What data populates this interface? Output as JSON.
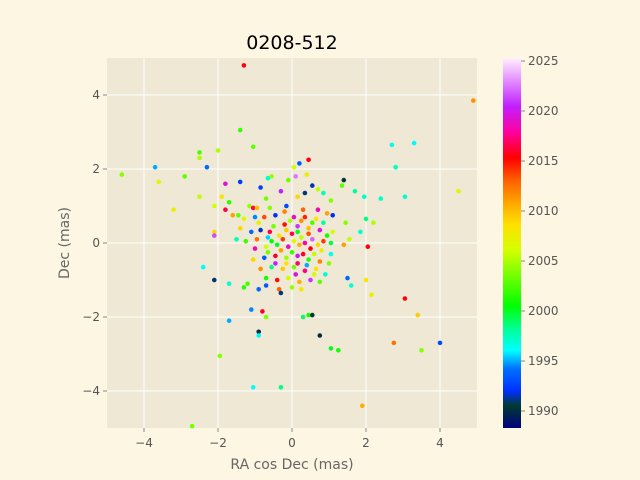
{
  "chart_data": {
    "type": "scatter",
    "title": "0208-512",
    "xlabel": "RA cos Dec (mas)",
    "ylabel": "Dec (mas)",
    "xlim": [
      -5.0,
      5.0
    ],
    "ylim": [
      -5.0,
      5.0
    ],
    "xticks": [
      -4,
      -2,
      0,
      2,
      4
    ],
    "yticks": [
      -4,
      -2,
      0,
      2,
      4
    ],
    "x_tick_labels": [
      "−4",
      "−2",
      "0",
      "2",
      "4"
    ],
    "y_tick_labels": [
      "−4",
      "−2",
      "0",
      "2",
      "4"
    ],
    "grid": true,
    "colorbar": {
      "label": "",
      "range": [
        1988.3,
        2025.3
      ],
      "ticks": [
        1990,
        1995,
        2000,
        2005,
        2010,
        2015,
        2020,
        2025
      ],
      "tick_labels": [
        "1990",
        "1995",
        "2000",
        "2005",
        "2010",
        "2015",
        "2020",
        "2025"
      ],
      "colormap": "gist_ncar"
    },
    "colors": {
      "page_background": "#fdf6e3",
      "axes_background": "#eee8d5",
      "grid": "#ffffff"
    },
    "points": [
      {
        "x": -1.3,
        "y": 4.8,
        "t": 2015.5
      },
      {
        "x": 4.9,
        "y": 3.85,
        "t": 2011.5
      },
      {
        "x": -4.6,
        "y": 1.85,
        "t": 2004.0
      },
      {
        "x": -3.7,
        "y": 2.05,
        "t": 1995.0
      },
      {
        "x": -3.6,
        "y": 1.65,
        "t": 2007.0
      },
      {
        "x": -3.2,
        "y": 0.9,
        "t": 2007.5
      },
      {
        "x": -2.9,
        "y": 1.8,
        "t": 2003.0
      },
      {
        "x": -2.5,
        "y": 2.45,
        "t": 2002.5
      },
      {
        "x": -2.5,
        "y": 2.3,
        "t": 2005.0
      },
      {
        "x": -2.3,
        "y": 2.05,
        "t": 1994.0
      },
      {
        "x": -2.0,
        "y": 2.5,
        "t": 2005.0
      },
      {
        "x": -1.4,
        "y": 3.05,
        "t": 2002.0
      },
      {
        "x": -1.05,
        "y": 2.6,
        "t": 2003.0
      },
      {
        "x": -1.4,
        "y": 1.65,
        "t": 1992.5
      },
      {
        "x": -1.8,
        "y": 1.6,
        "t": 2019.5
      },
      {
        "x": -2.5,
        "y": 1.25,
        "t": 2005.5
      },
      {
        "x": -1.9,
        "y": 1.25,
        "t": 2008.0
      },
      {
        "x": -1.7,
        "y": 1.1,
        "t": 2001.5
      },
      {
        "x": -2.1,
        "y": 1.0,
        "t": 2006.0
      },
      {
        "x": -1.8,
        "y": 0.9,
        "t": 2016.5
      },
      {
        "x": -1.6,
        "y": 0.75,
        "t": 2011.0
      },
      {
        "x": -2.1,
        "y": 0.3,
        "t": 2009.0
      },
      {
        "x": -2.1,
        "y": 0.2,
        "t": 2021.5
      },
      {
        "x": -2.4,
        "y": -0.65,
        "t": 1996.0
      },
      {
        "x": -2.1,
        "y": -1.0,
        "t": 1991.0
      },
      {
        "x": -1.7,
        "y": -1.1,
        "t": 1997.0
      },
      {
        "x": -1.3,
        "y": -1.2,
        "t": 2001.5
      },
      {
        "x": -1.2,
        "y": -1.1,
        "t": 2002.5
      },
      {
        "x": -0.9,
        "y": -1.25,
        "t": 1994.0
      },
      {
        "x": -0.7,
        "y": -1.15,
        "t": 1993.5
      },
      {
        "x": -1.7,
        "y": -2.1,
        "t": 1995.0
      },
      {
        "x": -1.1,
        "y": -1.8,
        "t": 1994.5
      },
      {
        "x": -0.8,
        "y": -1.85,
        "t": 2016.0
      },
      {
        "x": -0.7,
        "y": -2.0,
        "t": 2004.0
      },
      {
        "x": -0.9,
        "y": -2.4,
        "t": 1990.0
      },
      {
        "x": -0.9,
        "y": -2.5,
        "t": 1996.0
      },
      {
        "x": -1.95,
        "y": -3.05,
        "t": 2004.0
      },
      {
        "x": -1.05,
        "y": -3.9,
        "t": 1996.0
      },
      {
        "x": -0.3,
        "y": -3.9,
        "t": 1998.5
      },
      {
        "x": -2.7,
        "y": -4.95,
        "t": 2003.5
      },
      {
        "x": 0.3,
        "y": -2.0,
        "t": 1999.0
      },
      {
        "x": 0.45,
        "y": -1.95,
        "t": 2001.0
      },
      {
        "x": 0.55,
        "y": -1.95,
        "t": 1990.5
      },
      {
        "x": 0.75,
        "y": -2.5,
        "t": 1990.0
      },
      {
        "x": 1.05,
        "y": -2.85,
        "t": 2000.0
      },
      {
        "x": 1.25,
        "y": -2.9,
        "t": 2001.0
      },
      {
        "x": 1.5,
        "y": -0.95,
        "t": 1994.0
      },
      {
        "x": 1.6,
        "y": -1.15,
        "t": 1997.0
      },
      {
        "x": 2.0,
        "y": -1.0,
        "t": 2008.0
      },
      {
        "x": 2.15,
        "y": -1.4,
        "t": 2007.5
      },
      {
        "x": 3.05,
        "y": -1.5,
        "t": 2015.5
      },
      {
        "x": 3.4,
        "y": -1.95,
        "t": 2009.5
      },
      {
        "x": 2.75,
        "y": -2.7,
        "t": 2012.5
      },
      {
        "x": 3.5,
        "y": -2.9,
        "t": 2004.0
      },
      {
        "x": 4.0,
        "y": -2.7,
        "t": 1993.0
      },
      {
        "x": 1.9,
        "y": -4.4,
        "t": 2010.5
      },
      {
        "x": 2.7,
        "y": 2.65,
        "t": 1996.5
      },
      {
        "x": 3.3,
        "y": 2.7,
        "t": 1996.0
      },
      {
        "x": 2.8,
        "y": 2.05,
        "t": 1997.5
      },
      {
        "x": 3.05,
        "y": 1.25,
        "t": 1997.0
      },
      {
        "x": 2.4,
        "y": 1.2,
        "t": 1997.0
      },
      {
        "x": 4.5,
        "y": 1.4,
        "t": 2007.0
      },
      {
        "x": 1.4,
        "y": 1.7,
        "t": 1990.5
      },
      {
        "x": 1.35,
        "y": 1.55,
        "t": 2003.0
      },
      {
        "x": 1.7,
        "y": 1.4,
        "t": 1998.0
      },
      {
        "x": 1.95,
        "y": 1.25,
        "t": 1997.0
      },
      {
        "x": 2.0,
        "y": 0.65,
        "t": 1998.5
      },
      {
        "x": 2.2,
        "y": 0.55,
        "t": 2005.0
      },
      {
        "x": 1.85,
        "y": 0.3,
        "t": 1997.0
      },
      {
        "x": 2.05,
        "y": -0.1,
        "t": 2015.5
      },
      {
        "x": 1.55,
        "y": 0.1,
        "t": 2005.5
      },
      {
        "x": 1.45,
        "y": 0.55,
        "t": 2004.0
      },
      {
        "x": 1.4,
        "y": -0.05,
        "t": 2011.0
      },
      {
        "x": 1.1,
        "y": 0.75,
        "t": 1992.0
      },
      {
        "x": 1.05,
        "y": 1.15,
        "t": 2004.0
      },
      {
        "x": 0.7,
        "y": 1.45,
        "t": 2005.5
      },
      {
        "x": 0.85,
        "y": 1.35,
        "t": 1997.5
      },
      {
        "x": 0.45,
        "y": 2.25,
        "t": 2015.5
      },
      {
        "x": 0.2,
        "y": 2.15,
        "t": 1993.5
      },
      {
        "x": 0.05,
        "y": 2.05,
        "t": 2006.0
      },
      {
        "x": 0.1,
        "y": 1.8,
        "t": 2022.5
      },
      {
        "x": 0.4,
        "y": 1.85,
        "t": 2007.5
      },
      {
        "x": 0.55,
        "y": 1.55,
        "t": 1991.5
      },
      {
        "x": -0.1,
        "y": 1.7,
        "t": 2003.5
      },
      {
        "x": -0.55,
        "y": 1.8,
        "t": 2004.5
      },
      {
        "x": -0.85,
        "y": 1.5,
        "t": 1992.5
      },
      {
        "x": -0.65,
        "y": 1.75,
        "t": 1997.0
      },
      {
        "x": -0.3,
        "y": 1.4,
        "t": 2020.5
      },
      {
        "x": 0.35,
        "y": 1.35,
        "t": 1991.0
      },
      {
        "x": 0.15,
        "y": 1.25,
        "t": 2009.0
      },
      {
        "x": -0.7,
        "y": 1.2,
        "t": 2003.5
      },
      {
        "x": -1.15,
        "y": 1.0,
        "t": 2004.5
      },
      {
        "x": -1.05,
        "y": 0.95,
        "t": 2016.5
      },
      {
        "x": -0.95,
        "y": 0.95,
        "t": 2010.0
      },
      {
        "x": -0.6,
        "y": 0.95,
        "t": 2004.0
      },
      {
        "x": -0.15,
        "y": 1.0,
        "t": 1993.0
      },
      {
        "x": 0.3,
        "y": 0.9,
        "t": 2013.0
      },
      {
        "x": 0.7,
        "y": 0.9,
        "t": 2018.5
      },
      {
        "x": 0.95,
        "y": 0.8,
        "t": 2011.0
      },
      {
        "x": -1.45,
        "y": 0.75,
        "t": 2003.0
      },
      {
        "x": -1.3,
        "y": 0.65,
        "t": 2006.5
      },
      {
        "x": -1.0,
        "y": 0.7,
        "t": 1994.5
      },
      {
        "x": -0.75,
        "y": 0.7,
        "t": 2013.5
      },
      {
        "x": -0.45,
        "y": 0.75,
        "t": 1992.0
      },
      {
        "x": 0.05,
        "y": 0.7,
        "t": 2019.0
      },
      {
        "x": 0.35,
        "y": 0.7,
        "t": 2014.5
      },
      {
        "x": 0.65,
        "y": 0.65,
        "t": 2008.5
      },
      {
        "x": 0.85,
        "y": 0.55,
        "t": 1998.0
      },
      {
        "x": -1.4,
        "y": 0.4,
        "t": 2009.0
      },
      {
        "x": -1.1,
        "y": 0.3,
        "t": 1994.0
      },
      {
        "x": -0.85,
        "y": 0.35,
        "t": 1991.5
      },
      {
        "x": -0.5,
        "y": 0.45,
        "t": 2003.5
      },
      {
        "x": -0.2,
        "y": 0.5,
        "t": 2015.0
      },
      {
        "x": 0.15,
        "y": 0.45,
        "t": 2021.0
      },
      {
        "x": 0.45,
        "y": 0.4,
        "t": 2010.0
      },
      {
        "x": 0.75,
        "y": 0.35,
        "t": 2019.5
      },
      {
        "x": 1.1,
        "y": 0.3,
        "t": 2006.5
      },
      {
        "x": -1.5,
        "y": 0.1,
        "t": 1997.5
      },
      {
        "x": -1.25,
        "y": 0.05,
        "t": 2002.0
      },
      {
        "x": -0.95,
        "y": 0.1,
        "t": 2012.5
      },
      {
        "x": -0.65,
        "y": 0.15,
        "t": 1995.5
      },
      {
        "x": -0.35,
        "y": 0.2,
        "t": 2008.5
      },
      {
        "x": 0.0,
        "y": 0.25,
        "t": 2016.5
      },
      {
        "x": 0.25,
        "y": 0.15,
        "t": 2005.5
      },
      {
        "x": 0.55,
        "y": 0.1,
        "t": 2022.0
      },
      {
        "x": 0.85,
        "y": 0.05,
        "t": 2014.0
      },
      {
        "x": 1.05,
        "y": 0.0,
        "t": 1999.5
      },
      {
        "x": -1.0,
        "y": -0.15,
        "t": 2018.5
      },
      {
        "x": -0.7,
        "y": -0.1,
        "t": 2006.0
      },
      {
        "x": -0.4,
        "y": -0.05,
        "t": 2000.0
      },
      {
        "x": -0.1,
        "y": -0.1,
        "t": 2019.0
      },
      {
        "x": 0.2,
        "y": -0.05,
        "t": 2010.5
      },
      {
        "x": 0.5,
        "y": -0.15,
        "t": 2015.5
      },
      {
        "x": 0.8,
        "y": -0.2,
        "t": 2007.5
      },
      {
        "x": 1.05,
        "y": -0.3,
        "t": 1996.5
      },
      {
        "x": -1.05,
        "y": -0.45,
        "t": 2009.0
      },
      {
        "x": -0.75,
        "y": -0.4,
        "t": 1993.5
      },
      {
        "x": -0.45,
        "y": -0.35,
        "t": 2016.0
      },
      {
        "x": -0.15,
        "y": -0.4,
        "t": 2004.5
      },
      {
        "x": 0.15,
        "y": -0.35,
        "t": 2020.0
      },
      {
        "x": 0.45,
        "y": -0.45,
        "t": 2001.5
      },
      {
        "x": 0.75,
        "y": -0.5,
        "t": 2012.0
      },
      {
        "x": 1.0,
        "y": -0.55,
        "t": 2004.0
      },
      {
        "x": -0.85,
        "y": -0.7,
        "t": 2011.5
      },
      {
        "x": -0.55,
        "y": -0.65,
        "t": 1998.5
      },
      {
        "x": -0.25,
        "y": -0.7,
        "t": 2009.5
      },
      {
        "x": 0.05,
        "y": -0.65,
        "t": 2003.5
      },
      {
        "x": 0.35,
        "y": -0.75,
        "t": 2017.5
      },
      {
        "x": 0.65,
        "y": -0.7,
        "t": 2008.0
      },
      {
        "x": 0.9,
        "y": -0.85,
        "t": 1997.0
      },
      {
        "x": -0.7,
        "y": -0.95,
        "t": 2001.0
      },
      {
        "x": -0.4,
        "y": -1.0,
        "t": 2015.0
      },
      {
        "x": -0.1,
        "y": -0.95,
        "t": 2006.0
      },
      {
        "x": 0.2,
        "y": -1.05,
        "t": 2010.5
      },
      {
        "x": 0.5,
        "y": -1.0,
        "t": 2021.0
      },
      {
        "x": 0.75,
        "y": -1.05,
        "t": 2003.0
      },
      {
        "x": -0.35,
        "y": -1.25,
        "t": 2013.0
      },
      {
        "x": -0.3,
        "y": -1.35,
        "t": 1991.0
      },
      {
        "x": 0.0,
        "y": -1.2,
        "t": 2004.5
      },
      {
        "x": 0.25,
        "y": -1.25,
        "t": 2008.0
      },
      {
        "x": -0.55,
        "y": 0.05,
        "t": 2000.5
      },
      {
        "x": -0.25,
        "y": 0.1,
        "t": 2014.0
      },
      {
        "x": 0.05,
        "y": 0.05,
        "t": 2007.0
      },
      {
        "x": 0.35,
        "y": 0.0,
        "t": 2018.0
      },
      {
        "x": -0.3,
        "y": -0.2,
        "t": 2011.0
      },
      {
        "x": 0.0,
        "y": -0.25,
        "t": 2002.0
      },
      {
        "x": 0.3,
        "y": -0.3,
        "t": 2016.0
      },
      {
        "x": 0.6,
        "y": -0.3,
        "t": 2005.5
      },
      {
        "x": -0.15,
        "y": 0.35,
        "t": 2009.5
      },
      {
        "x": 0.15,
        "y": 0.3,
        "t": 2000.0
      },
      {
        "x": 0.45,
        "y": 0.25,
        "t": 2013.5
      },
      {
        "x": -0.45,
        "y": -0.55,
        "t": 2020.5
      },
      {
        "x": -0.15,
        "y": -0.55,
        "t": 2008.5
      },
      {
        "x": 0.15,
        "y": -0.55,
        "t": 2017.0
      },
      {
        "x": 0.4,
        "y": -0.6,
        "t": 1995.0
      },
      {
        "x": -0.05,
        "y": 0.6,
        "t": 2005.0
      },
      {
        "x": 0.25,
        "y": 0.6,
        "t": 2011.5
      },
      {
        "x": -0.65,
        "y": -0.25,
        "t": 2003.5
      },
      {
        "x": 0.7,
        "y": -0.05,
        "t": 2009.0
      },
      {
        "x": 0.95,
        "y": 0.2,
        "t": 2001.0
      },
      {
        "x": -0.9,
        "y": 0.55,
        "t": 2007.0
      },
      {
        "x": 0.55,
        "y": 0.55,
        "t": 2002.5
      },
      {
        "x": -0.2,
        "y": 0.85,
        "t": 2012.0
      },
      {
        "x": 0.1,
        "y": -0.85,
        "t": 2019.5
      },
      {
        "x": -0.6,
        "y": 0.3,
        "t": 2016.5
      },
      {
        "x": 0.6,
        "y": -0.85,
        "t": 2006.5
      }
    ]
  }
}
